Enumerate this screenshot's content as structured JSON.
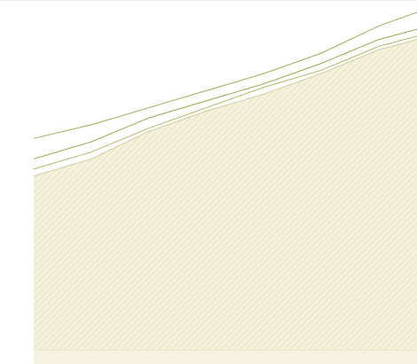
{
  "chart_data": {
    "type": "area",
    "x": [
      0,
      15,
      30,
      45,
      60,
      75,
      90,
      100
    ],
    "values": [
      51,
      56,
      64,
      70,
      75,
      81,
      88,
      91
    ],
    "color": "#f4f1dc",
    "hatch_color": "#e4ddb2",
    "edge_color": "#d8d3a8",
    "lines": [
      {
        "color": "#a3ad55",
        "values": [
          62,
          66,
          71,
          76,
          81,
          87,
          95,
          99
        ]
      },
      {
        "color": "#9aa64a",
        "values": [
          56,
          61,
          68,
          73,
          78,
          84,
          91,
          94
        ]
      },
      {
        "color": "#b0b866",
        "values": [
          53,
          58,
          65,
          71,
          77,
          82,
          89,
          92
        ]
      }
    ],
    "xlim": [
      0,
      100
    ],
    "ylim": [
      0,
      100
    ]
  }
}
